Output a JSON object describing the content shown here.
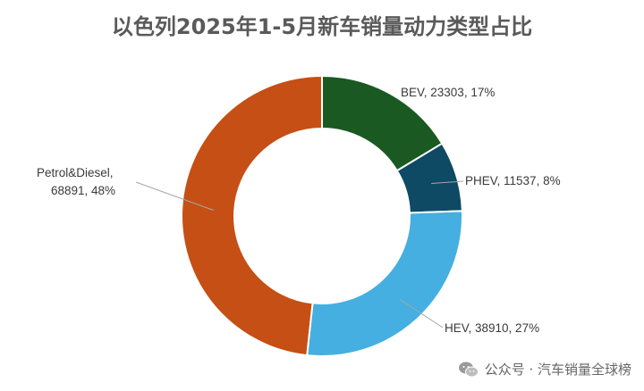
{
  "chart_data": {
    "type": "pie",
    "variant": "donut",
    "title": "以色列2025年1-5月新车销量动力类型占比",
    "slices": [
      {
        "name": "BEV",
        "value": 23303,
        "percent": "17%",
        "color": "#1a5a22",
        "label": "BEV, 23303, 17%"
      },
      {
        "name": "PHEV",
        "value": 11537,
        "percent": "8%",
        "color": "#0e4a63",
        "label": "PHEV, 11537, 8%"
      },
      {
        "name": "HEV",
        "value": 38910,
        "percent": "27%",
        "color": "#44afe0",
        "label": "HEV, 38910, 27%"
      },
      {
        "name": "Petrol&Diesel",
        "value": 68891,
        "percent": "48%",
        "color": "#c54f14",
        "label_lines": [
          "Petrol&Diesel,",
          "68891, 48%"
        ]
      }
    ],
    "legend": "none"
  },
  "watermark": {
    "icon": "wechat-icon",
    "text": "公众号 · 汽车销量全球榜"
  }
}
